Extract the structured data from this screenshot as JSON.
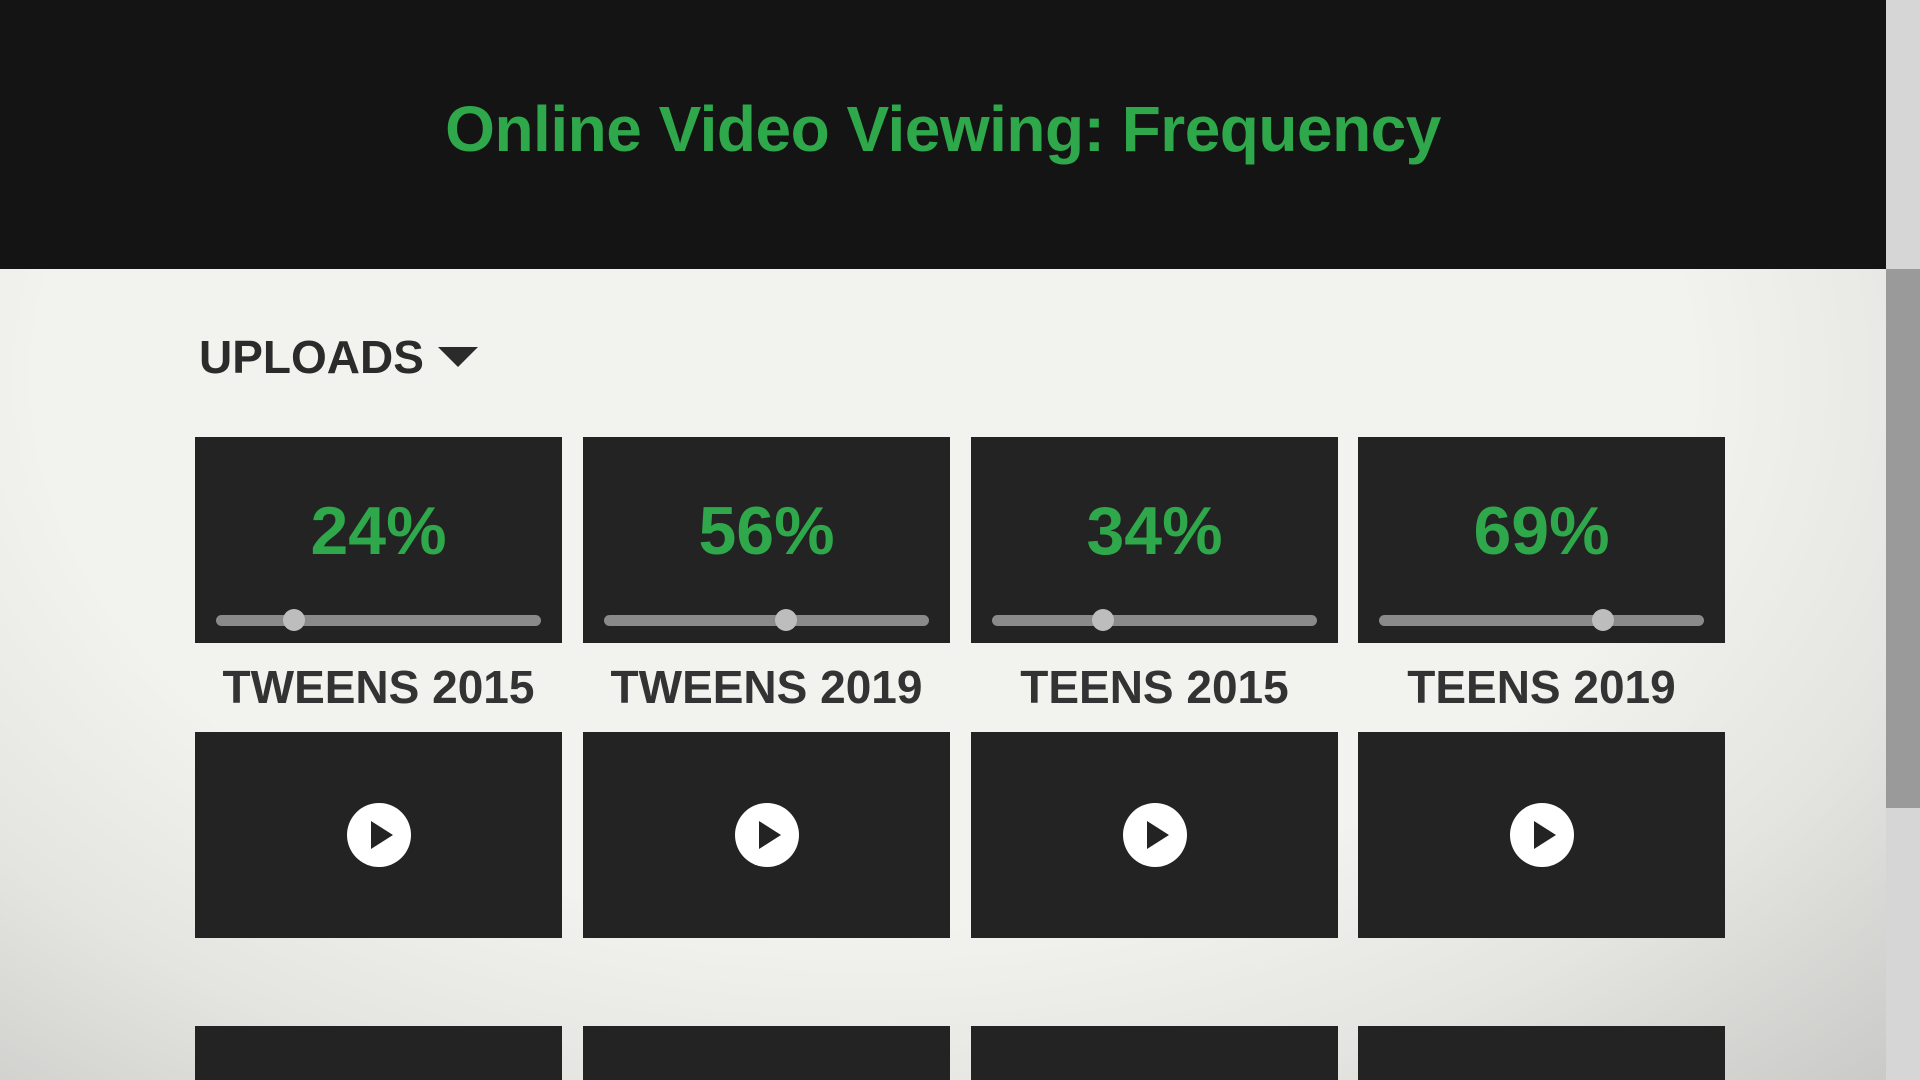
{
  "header": {
    "title": "Online Video Viewing: Frequency"
  },
  "dropdown": {
    "label": "UPLOADS"
  },
  "cards": [
    {
      "label": "TWEENS 2015",
      "value": 24,
      "value_label": "24%"
    },
    {
      "label": "TWEENS 2019",
      "value": 56,
      "value_label": "56%"
    },
    {
      "label": "TEENS 2015",
      "value": 34,
      "value_label": "34%"
    },
    {
      "label": "TEENS 2019",
      "value": 69,
      "value_label": "69%"
    }
  ]
}
